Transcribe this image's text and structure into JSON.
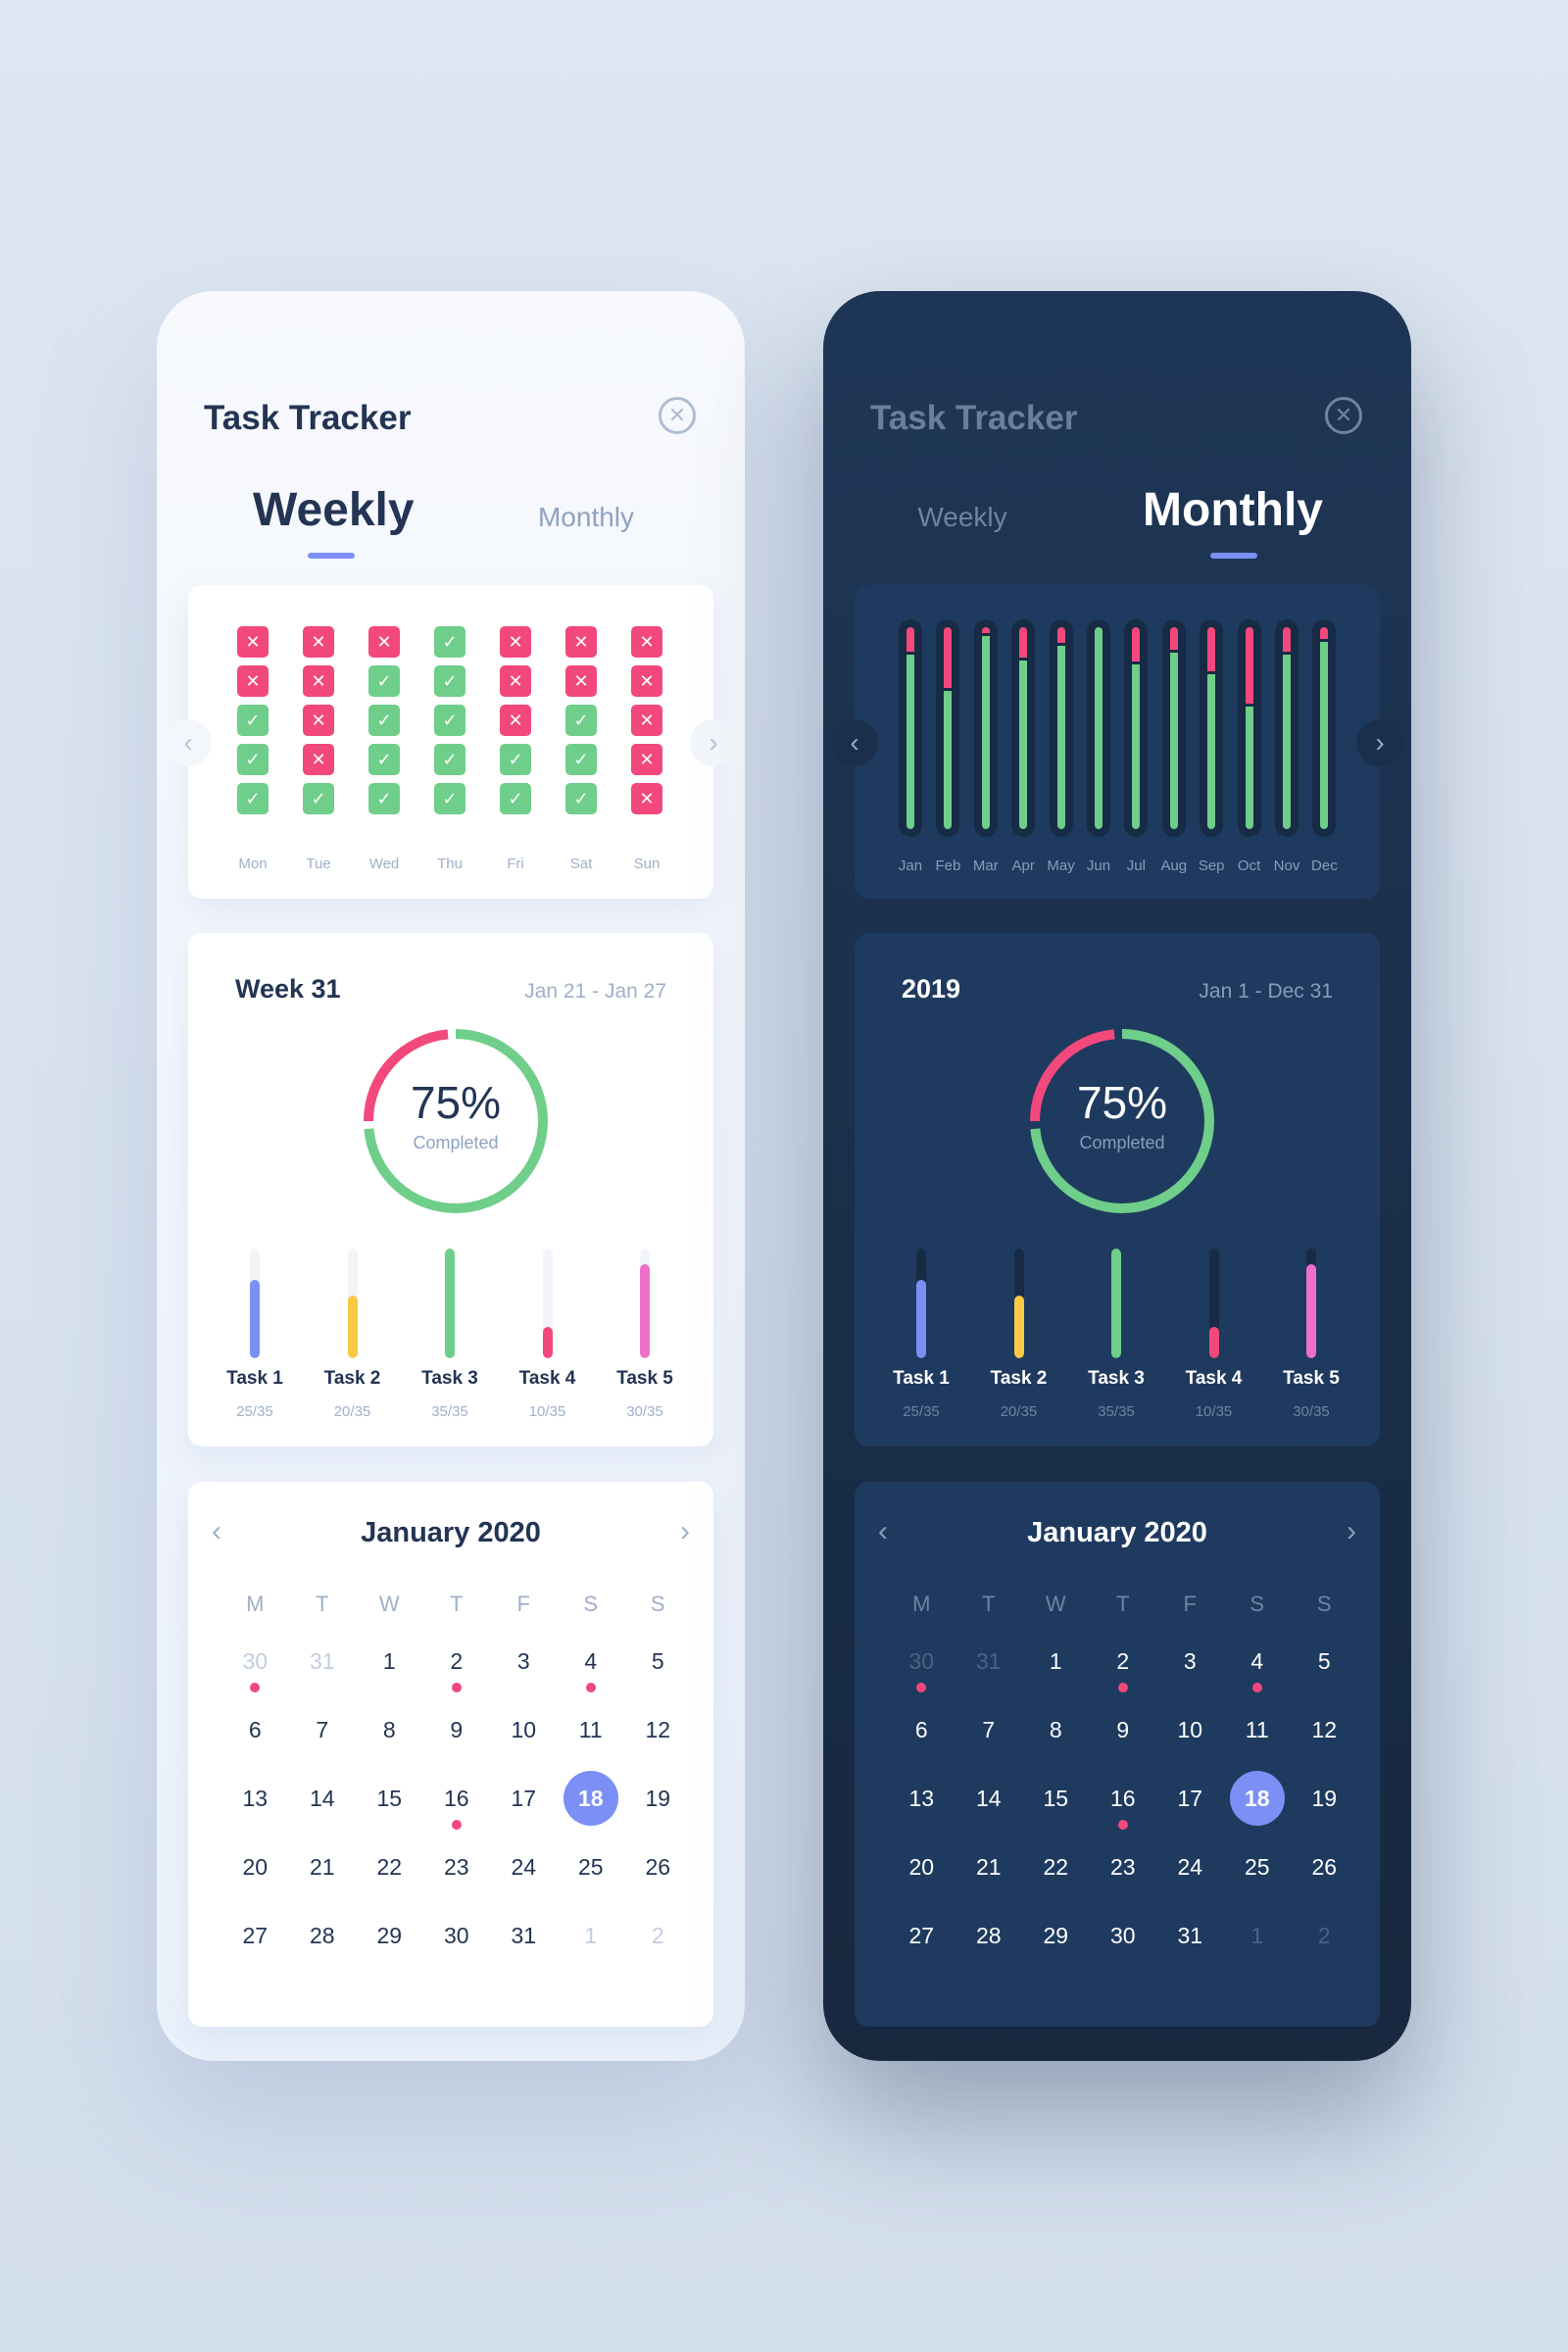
{
  "colors": {
    "accent": "#7b8ff5",
    "done": "#6fce8a",
    "missed": "#f2487c"
  },
  "light": {
    "title": "Task Tracker",
    "close_icon": "close-circle-icon",
    "tabs": {
      "weekly": "Weekly",
      "monthly": "Monthly",
      "active": "weekly"
    },
    "weekly_chart": {
      "days": [
        "Mon",
        "Tue",
        "Wed",
        "Thu",
        "Fri",
        "Sat",
        "Sun"
      ],
      "status": [
        [
          "no",
          "no",
          "ok",
          "ok",
          "ok"
        ],
        [
          "no",
          "no",
          "no",
          "no",
          "ok"
        ],
        [
          "no",
          "ok",
          "ok",
          "ok",
          "ok"
        ],
        [
          "ok",
          "ok",
          "ok",
          "ok",
          "ok"
        ],
        [
          "no",
          "no",
          "no",
          "ok",
          "ok"
        ],
        [
          "no",
          "no",
          "ok",
          "ok",
          "ok"
        ],
        [
          "no",
          "no",
          "no",
          "no",
          "no"
        ]
      ]
    },
    "stats": {
      "title": "Week 31",
      "range": "Jan 21 - Jan 27",
      "percent": "75%",
      "percent_label": "Completed",
      "completed_fraction": 0.75,
      "tasks": [
        {
          "name": "Task 1",
          "count": "25/35",
          "fraction": 0.714,
          "color": "#7b8ff5"
        },
        {
          "name": "Task 2",
          "count": "20/35",
          "fraction": 0.571,
          "color": "#f7c945"
        },
        {
          "name": "Task 3",
          "count": "35/35",
          "fraction": 1.0,
          "color": "#6fce8a"
        },
        {
          "name": "Task 4",
          "count": "10/35",
          "fraction": 0.286,
          "color": "#f2487c"
        },
        {
          "name": "Task 5",
          "count": "30/35",
          "fraction": 0.857,
          "color": "#ee70c8"
        }
      ]
    },
    "calendar": {
      "title": "January 2020",
      "weekdays": [
        "M",
        "T",
        "W",
        "T",
        "F",
        "S",
        "S"
      ],
      "weeks": [
        [
          {
            "d": "30",
            "m": true,
            "dot": true
          },
          {
            "d": "31",
            "m": true
          },
          {
            "d": "1"
          },
          {
            "d": "2",
            "dot": true
          },
          {
            "d": "3"
          },
          {
            "d": "4",
            "dot": true
          },
          {
            "d": "5"
          }
        ],
        [
          {
            "d": "6"
          },
          {
            "d": "7"
          },
          {
            "d": "8"
          },
          {
            "d": "9"
          },
          {
            "d": "10"
          },
          {
            "d": "11"
          },
          {
            "d": "12"
          }
        ],
        [
          {
            "d": "13"
          },
          {
            "d": "14"
          },
          {
            "d": "15"
          },
          {
            "d": "16",
            "dot": true
          },
          {
            "d": "17"
          },
          {
            "d": "18",
            "sel": true
          },
          {
            "d": "19"
          }
        ],
        [
          {
            "d": "20"
          },
          {
            "d": "21"
          },
          {
            "d": "22"
          },
          {
            "d": "23"
          },
          {
            "d": "24"
          },
          {
            "d": "25"
          },
          {
            "d": "26"
          }
        ],
        [
          {
            "d": "27"
          },
          {
            "d": "28"
          },
          {
            "d": "29"
          },
          {
            "d": "30"
          },
          {
            "d": "31"
          },
          {
            "d": "1",
            "m": true
          },
          {
            "d": "2",
            "m": true
          }
        ]
      ]
    }
  },
  "dark": {
    "title": "Task Tracker",
    "close_icon": "close-circle-icon",
    "tabs": {
      "weekly": "Weekly",
      "monthly": "Monthly",
      "active": "monthly"
    },
    "monthly_chart": {
      "months": [
        "Jan",
        "Feb",
        "Mar",
        "Apr",
        "May",
        "Jun",
        "Jul",
        "Aug",
        "Sep",
        "Oct",
        "Nov",
        "Dec"
      ],
      "missed_fraction": [
        0.12,
        0.3,
        0.03,
        0.15,
        0.08,
        0.0,
        0.17,
        0.11,
        0.22,
        0.38,
        0.12,
        0.06
      ]
    },
    "stats": {
      "title": "2019",
      "range": "Jan 1 - Dec 31",
      "percent": "75%",
      "percent_label": "Completed",
      "completed_fraction": 0.75,
      "tasks": [
        {
          "name": "Task 1",
          "count": "25/35",
          "fraction": 0.714,
          "color": "#7b8ff5"
        },
        {
          "name": "Task 2",
          "count": "20/35",
          "fraction": 0.571,
          "color": "#f7c945"
        },
        {
          "name": "Task 3",
          "count": "35/35",
          "fraction": 1.0,
          "color": "#6fce8a"
        },
        {
          "name": "Task 4",
          "count": "10/35",
          "fraction": 0.286,
          "color": "#f2487c"
        },
        {
          "name": "Task 5",
          "count": "30/35",
          "fraction": 0.857,
          "color": "#ee70c8"
        }
      ]
    },
    "calendar": {
      "title": "January 2020",
      "weekdays": [
        "M",
        "T",
        "W",
        "T",
        "F",
        "S",
        "S"
      ],
      "weeks": [
        [
          {
            "d": "30",
            "m": true,
            "dot": true
          },
          {
            "d": "31",
            "m": true
          },
          {
            "d": "1"
          },
          {
            "d": "2",
            "dot": true
          },
          {
            "d": "3"
          },
          {
            "d": "4",
            "dot": true
          },
          {
            "d": "5"
          }
        ],
        [
          {
            "d": "6"
          },
          {
            "d": "7"
          },
          {
            "d": "8"
          },
          {
            "d": "9"
          },
          {
            "d": "10"
          },
          {
            "d": "11"
          },
          {
            "d": "12"
          }
        ],
        [
          {
            "d": "13"
          },
          {
            "d": "14"
          },
          {
            "d": "15"
          },
          {
            "d": "16",
            "dot": true
          },
          {
            "d": "17"
          },
          {
            "d": "18",
            "sel": true
          },
          {
            "d": "19"
          }
        ],
        [
          {
            "d": "20"
          },
          {
            "d": "21"
          },
          {
            "d": "22"
          },
          {
            "d": "23"
          },
          {
            "d": "24"
          },
          {
            "d": "25"
          },
          {
            "d": "26"
          }
        ],
        [
          {
            "d": "27"
          },
          {
            "d": "28"
          },
          {
            "d": "29"
          },
          {
            "d": "30"
          },
          {
            "d": "31"
          },
          {
            "d": "1",
            "m": true
          },
          {
            "d": "2",
            "m": true
          }
        ]
      ]
    }
  }
}
